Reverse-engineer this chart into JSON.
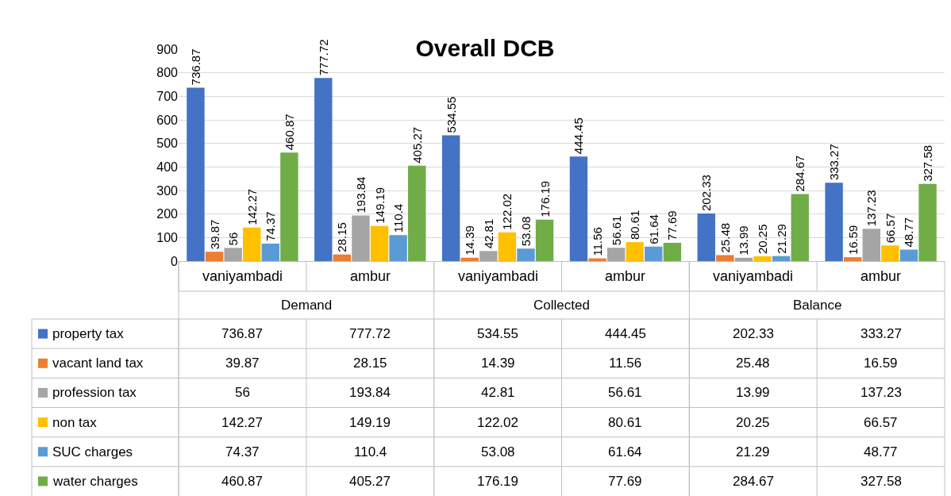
{
  "chart_data": {
    "type": "bar",
    "title": "Overall DCB",
    "categories": [
      "vaniyambadi",
      "ambur",
      "vaniyambadi",
      "ambur",
      "vaniyambadi",
      "ambur"
    ],
    "annotations": [
      "Demand",
      "Collected",
      "Balance"
    ],
    "series": [
      {
        "name": "property tax",
        "color": "#4472c4",
        "values": [
          736.87,
          777.72,
          534.55,
          444.45,
          202.33,
          333.27
        ],
        "value_labels": [
          "736.87",
          "777.72",
          "534.55",
          "444.45",
          "202.33",
          "333.27"
        ]
      },
      {
        "name": "vacant land tax",
        "color": "#ed7d31",
        "values": [
          39.87,
          28.15,
          14.39,
          11.56,
          25.48,
          16.59
        ],
        "value_labels": [
          "39.87",
          "28.15",
          "14.39",
          "11.56",
          "25.48",
          "16.59"
        ]
      },
      {
        "name": "profession tax",
        "color": "#a5a5a5",
        "values": [
          56,
          193.84,
          42.81,
          56.61,
          13.99,
          137.23
        ],
        "value_labels": [
          "56",
          "193.84",
          "42.81",
          "56.61",
          "13.99",
          "137.23"
        ]
      },
      {
        "name": "non tax",
        "color": "#ffc000",
        "values": [
          142.27,
          149.19,
          122.02,
          80.61,
          20.25,
          66.57
        ],
        "value_labels": [
          "142.27",
          "149.19",
          "122.02",
          "80.61",
          "20.25",
          "66.57"
        ]
      },
      {
        "name": "SUC charges",
        "color": "#5b9bd5",
        "values": [
          74.37,
          110.4,
          53.08,
          61.64,
          21.29,
          48.77
        ],
        "value_labels": [
          "74.37",
          "110.4",
          "53.08",
          "61.64",
          "21.29",
          "48.77"
        ]
      },
      {
        "name": "water charges",
        "color": "#70ad47",
        "values": [
          460.87,
          405.27,
          176.19,
          77.69,
          284.67,
          327.58
        ],
        "value_labels": [
          "460.87",
          "405.27",
          "176.19",
          "77.69",
          "284.67",
          "327.58"
        ]
      }
    ],
    "ylim": [
      0,
      900
    ],
    "yticks": [
      0,
      100,
      200,
      300,
      400,
      500,
      600,
      700,
      800,
      900
    ],
    "grid": "y",
    "legend": "bottom left",
    "data_labels": true
  }
}
